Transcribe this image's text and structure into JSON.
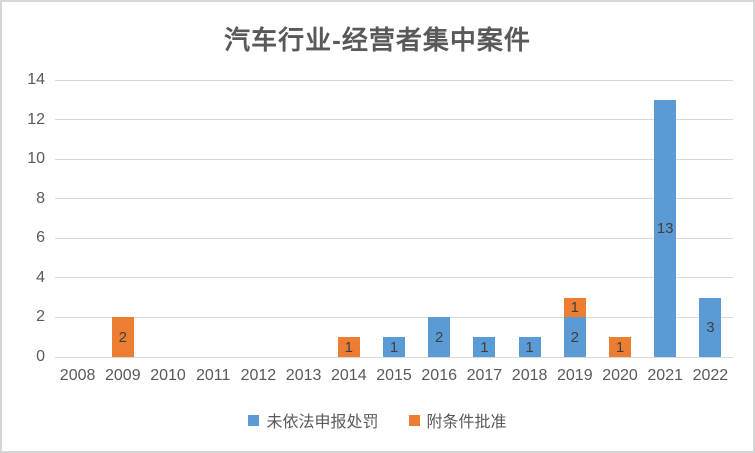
{
  "chart_data": {
    "type": "bar",
    "stacked": true,
    "title": "汽车行业-经营者集中案件",
    "categories": [
      "2008",
      "2009",
      "2010",
      "2011",
      "2012",
      "2013",
      "2014",
      "2015",
      "2016",
      "2017",
      "2018",
      "2019",
      "2020",
      "2021",
      "2022"
    ],
    "series": [
      {
        "name": "未依法申报处罚",
        "color": "#5B9BD5",
        "values": [
          0,
          0,
          0,
          0,
          0,
          0,
          0,
          1,
          2,
          1,
          1,
          2,
          0,
          13,
          3
        ]
      },
      {
        "name": "附条件批准",
        "color": "#ED7D31",
        "values": [
          0,
          2,
          0,
          0,
          0,
          0,
          1,
          0,
          0,
          0,
          0,
          1,
          1,
          0,
          0
        ]
      }
    ],
    "ylim": [
      0,
      14
    ],
    "ytick_step": 2,
    "yticks": [
      0,
      2,
      4,
      6,
      8,
      10,
      12,
      14
    ],
    "grid": "horizontal",
    "legend_position": "bottom",
    "data_labels": "center",
    "colors": {
      "title_text": "#595959",
      "axis_text": "#595959",
      "data_label_text": "#404040",
      "gridline": "#D9D9D9",
      "frame_border": "#D6D6D6",
      "background": "#FFFFFF"
    }
  }
}
